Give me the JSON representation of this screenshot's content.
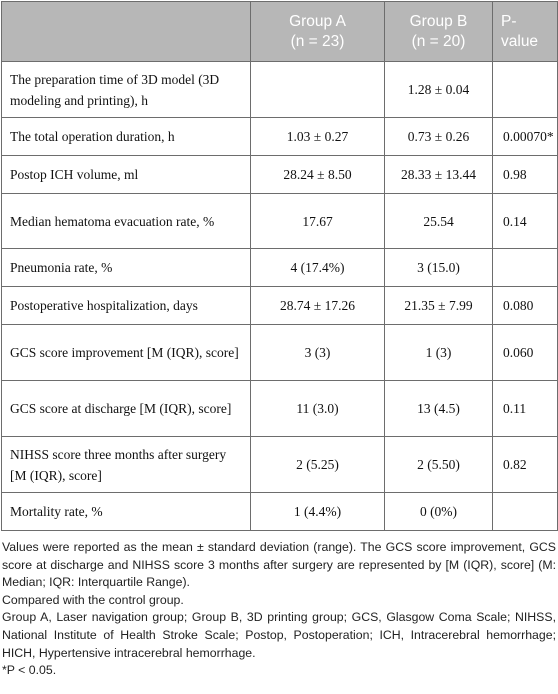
{
  "table": {
    "headers": {
      "col1": "",
      "group_a": [
        "Group A",
        "(n = 23)"
      ],
      "group_b": [
        "Group B",
        "(n = 20)"
      ],
      "pvalue": [
        "P-",
        "value"
      ]
    },
    "rows": [
      {
        "label": "The preparation time of 3D model (3D modeling and printing), h",
        "a": "",
        "b": "1.28 ± 0.04",
        "p": ""
      },
      {
        "label": "The total operation duration, h",
        "a": "1.03 ± 0.27",
        "b": "0.73 ± 0.26",
        "p": "0.00070*"
      },
      {
        "label": "Postop ICH volume, ml",
        "a": "28.24 ± 8.50",
        "b": "28.33 ± 13.44",
        "p": "0.98"
      },
      {
        "label": "Median hematoma evacuation rate, %",
        "a": "17.67",
        "b": "25.54",
        "p": "0.14"
      },
      {
        "label": "Pneumonia rate, %",
        "a": "4 (17.4%)",
        "b": "3 (15.0)",
        "p": ""
      },
      {
        "label": "Postoperative hospitalization, days",
        "a": "28.74 ± 17.26",
        "b": "21.35 ± 7.99",
        "p": "0.080"
      },
      {
        "label": "GCS score improvement [M (IQR), score]",
        "a": "3 (3)",
        "b": "1 (3)",
        "p": "0.060"
      },
      {
        "label": "GCS score at discharge [M (IQR), score]",
        "a": "11 (3.0)",
        "b": "13 (4.5)",
        "p": "0.11"
      },
      {
        "label": "NIHSS score three months after surgery [M (IQR), score]",
        "a": "2 (5.25)",
        "b": "2 (5.50)",
        "p": "0.82"
      },
      {
        "label": "Mortality rate, %",
        "a": "1 (4.4%)",
        "b": "0 (0%)",
        "p": ""
      }
    ]
  },
  "notes": {
    "values_note": "Values were reported as the mean ± standard deviation (range). The GCS score improvement, GCS score at discharge and NIHSS score 3 months after surgery are represented by [M (IQR), score] (M: Median; IQR: Interquartile Range).",
    "compared": "Compared with the control group.",
    "abbreviations": "Group A, Laser navigation group; Group B, 3D printing group; GCS, Glasgow Coma Scale; NIHSS, National Institute of Health Stroke Scale; Postop, Postoperation; ICH, Intracerebral hemorrhage; HICH, Hypertensive intracerebral hemorrhage.",
    "significance": "*P < 0.05."
  }
}
